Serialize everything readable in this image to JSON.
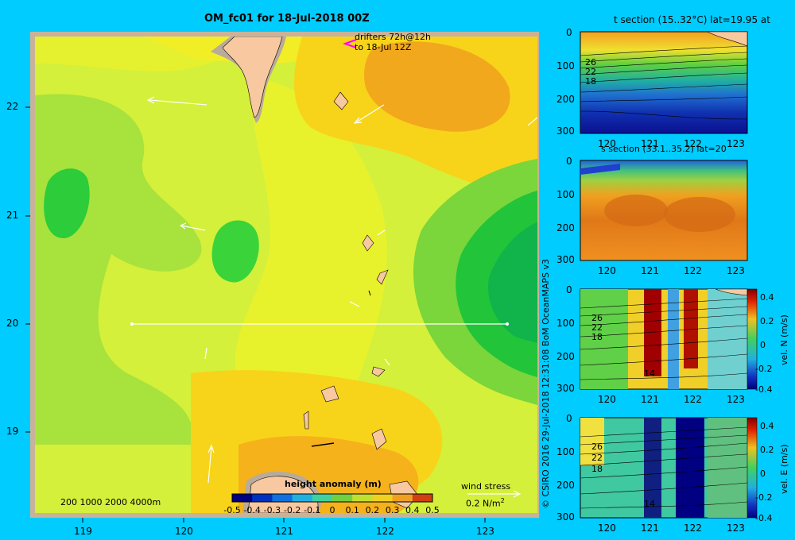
{
  "chart_data": [
    {
      "type": "heatmap",
      "title": "OM_fc01 for 18-Jul-2018 00Z",
      "x_ticks": [
        "119",
        "120",
        "121",
        "122",
        "123"
      ],
      "y_ticks": [
        "22",
        "21",
        "20",
        "19"
      ],
      "colorbar": {
        "label": "height anomaly (m)",
        "ticks": [
          "-0.5",
          "-0.4",
          "-0.3",
          "-0.2",
          "-0.1",
          "0",
          "0.1",
          "0.2",
          "0.3",
          "0.4",
          "0.5"
        ],
        "range": [
          -0.5,
          0.5
        ]
      },
      "section_line": {
        "lat": 20,
        "lon_start": 119.5,
        "lon_end": 123.2
      },
      "drifters_note": [
        "drifters 72h@12h",
        "to 18-Jul 12Z"
      ],
      "depth_legend": "200  1000  2000  4000m",
      "wind_stress": {
        "label": "wind stress",
        "scale": "0.2 N/m",
        "unit_superscript": "2"
      }
    },
    {
      "type": "heatmap",
      "title": "t section (15..32°C) lat=19.95 at",
      "x_ticks": [
        "120",
        "121",
        "122",
        "123"
      ],
      "y_ticks": [
        "0",
        "100",
        "200",
        "300"
      ],
      "contour_labels": [
        "26",
        "22",
        "18"
      ]
    },
    {
      "type": "heatmap",
      "title": "s section (33.1..35.2) lat=20",
      "x_ticks": [
        "120",
        "121",
        "122",
        "123"
      ],
      "y_ticks": [
        "0",
        "100",
        "200",
        "300"
      ]
    },
    {
      "type": "heatmap",
      "title": "",
      "x_ticks": [
        "120",
        "121",
        "122",
        "123"
      ],
      "y_ticks": [
        "0",
        "100",
        "200",
        "300"
      ],
      "contour_labels": [
        "26",
        "22",
        "18",
        "14"
      ],
      "colorbar": {
        "label": "vel. N (m/s)",
        "ticks": [
          "0.4",
          "0.2",
          "0",
          "-0.2",
          "-0.4"
        ],
        "range": [
          -0.4,
          0.4
        ]
      }
    },
    {
      "type": "heatmap",
      "title": "",
      "x_ticks": [
        "120",
        "121",
        "122",
        "123"
      ],
      "y_ticks": [
        "0",
        "100",
        "200",
        "300"
      ],
      "contour_labels": [
        "26",
        "22",
        "18",
        "14"
      ],
      "colorbar": {
        "label": "vel. E (m/s)",
        "ticks": [
          "0.4",
          "0.2",
          "0",
          "-0.2",
          "-0.4"
        ],
        "range": [
          -0.4,
          0.4
        ]
      }
    }
  ],
  "credit": "© CSIRO 2016   29-Jul-2018 12:31:08 BoM OceanMAPS v3"
}
